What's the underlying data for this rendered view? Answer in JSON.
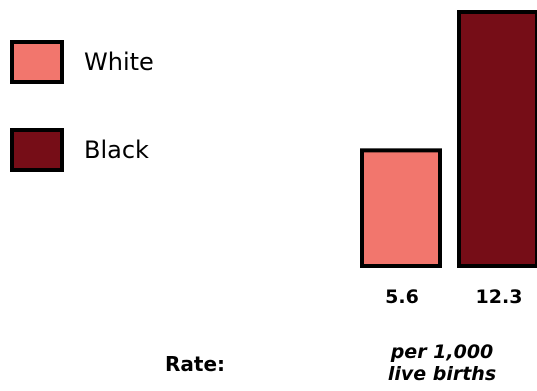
{
  "chart_data": {
    "type": "bar",
    "categories": [
      "White",
      "Black"
    ],
    "values": [
      5.6,
      12.3
    ],
    "value_labels": [
      "5.6",
      "12.3"
    ],
    "colors": [
      "#f2766d",
      "#760d17"
    ],
    "legend": {
      "placement": "left",
      "entries": [
        "White",
        "Black"
      ]
    },
    "rate_label": "Rate:",
    "unit_label": "per 1,000 live births",
    "ylim": [
      0,
      12.3
    ],
    "grid": false
  }
}
